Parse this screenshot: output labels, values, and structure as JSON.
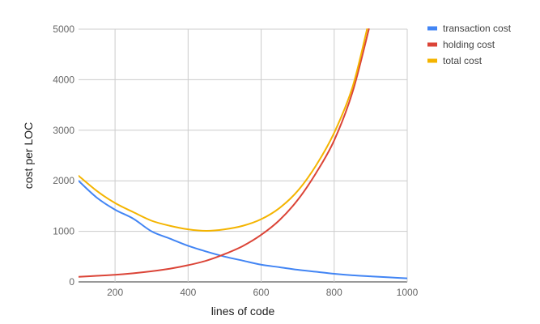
{
  "chart_data": {
    "type": "line",
    "title": "",
    "xlabel": "lines of code",
    "ylabel": "cost per LOC",
    "xlim": [
      100,
      1000
    ],
    "ylim": [
      0,
      5000
    ],
    "x_ticks": [
      200,
      400,
      600,
      800,
      1000
    ],
    "y_ticks": [
      0,
      1000,
      2000,
      3000,
      4000,
      5000
    ],
    "grid": true,
    "legend_position": "right",
    "series": [
      {
        "name": "transaction cost",
        "color": "#4285f4",
        "points": [
          [
            100,
            2000
          ],
          [
            150,
            1667
          ],
          [
            200,
            1429
          ],
          [
            250,
            1250
          ],
          [
            300,
            1000
          ],
          [
            350,
            857
          ],
          [
            400,
            714
          ],
          [
            450,
            600
          ],
          [
            500,
            500
          ],
          [
            550,
            420
          ],
          [
            600,
            340
          ],
          [
            650,
            290
          ],
          [
            700,
            240
          ],
          [
            750,
            200
          ],
          [
            800,
            160
          ],
          [
            850,
            130
          ],
          [
            900,
            110
          ],
          [
            950,
            90
          ],
          [
            1000,
            70
          ]
        ]
      },
      {
        "name": "holding cost",
        "color": "#db4437",
        "points": [
          [
            100,
            100
          ],
          [
            150,
            120
          ],
          [
            200,
            140
          ],
          [
            250,
            170
          ],
          [
            300,
            210
          ],
          [
            350,
            260
          ],
          [
            400,
            330
          ],
          [
            450,
            420
          ],
          [
            500,
            550
          ],
          [
            550,
            710
          ],
          [
            600,
            930
          ],
          [
            650,
            1220
          ],
          [
            700,
            1620
          ],
          [
            750,
            2150
          ],
          [
            800,
            2800
          ],
          [
            850,
            3750
          ],
          [
            895,
            5000
          ]
        ]
      },
      {
        "name": "total cost",
        "color": "#f4b400",
        "points": [
          [
            100,
            2100
          ],
          [
            150,
            1800
          ],
          [
            200,
            1560
          ],
          [
            250,
            1380
          ],
          [
            300,
            1210
          ],
          [
            350,
            1110
          ],
          [
            400,
            1040
          ],
          [
            450,
            1010
          ],
          [
            500,
            1040
          ],
          [
            550,
            1110
          ],
          [
            600,
            1240
          ],
          [
            650,
            1460
          ],
          [
            700,
            1800
          ],
          [
            750,
            2300
          ],
          [
            800,
            2950
          ],
          [
            850,
            3850
          ],
          [
            890,
            5000
          ]
        ]
      }
    ]
  }
}
